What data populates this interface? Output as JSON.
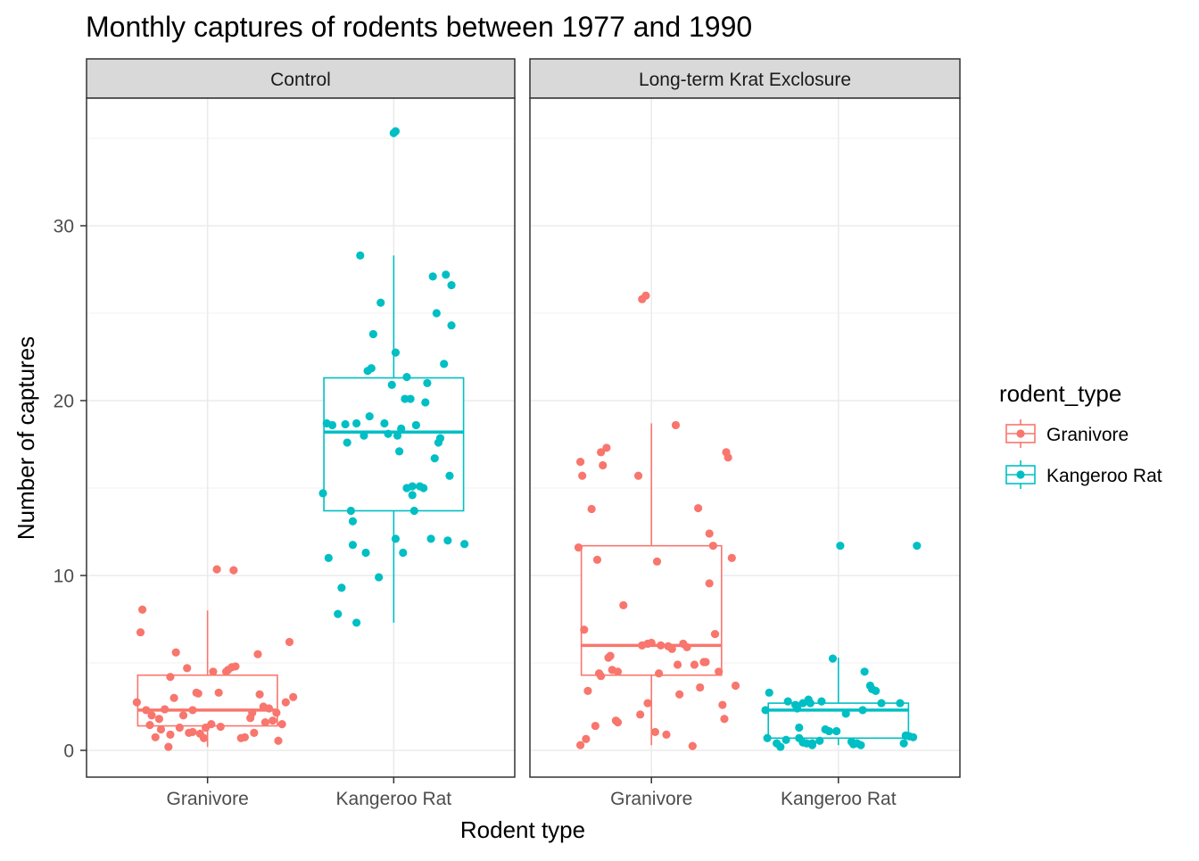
{
  "chart_data": {
    "type": "boxplot",
    "title": "Monthly captures of rodents between 1977 and 1990",
    "xlabel": "Rodent type",
    "ylabel": "Number of captures",
    "ylim": [
      -1.5,
      37
    ],
    "y_ticks": [
      0,
      10,
      20,
      30
    ],
    "categories": [
      "Granivore",
      "Kangeroo Rat"
    ],
    "grid": true,
    "legend": {
      "title": "rodent_type",
      "position": "right",
      "entries": [
        {
          "label": "Granivore",
          "color": "#F8766D"
        },
        {
          "label": "Kangeroo Rat",
          "color": "#00BFC4"
        }
      ]
    },
    "panels": [
      {
        "label": "Control",
        "boxes": [
          {
            "category": "Granivore",
            "color": "#F8766D",
            "whisker_low": 0.2,
            "q1": 1.4,
            "median": 2.3,
            "q3": 4.3,
            "whisker_high": 8.0,
            "points": [
              [
                -0.38,
                2.75
              ],
              [
                -0.36,
                6.75
              ],
              [
                -0.35,
                8.05
              ],
              [
                -0.33,
                2.3
              ],
              [
                -0.31,
                1.45
              ],
              [
                -0.3,
                2.0
              ],
              [
                -0.28,
                0.75
              ],
              [
                -0.26,
                1.8
              ],
              [
                -0.25,
                1.2
              ],
              [
                -0.23,
                2.35
              ],
              [
                -0.21,
                0.2
              ],
              [
                -0.2,
                0.9
              ],
              [
                -0.2,
                4.2
              ],
              [
                -0.18,
                3.0
              ],
              [
                -0.17,
                5.6
              ],
              [
                -0.15,
                1.3
              ],
              [
                -0.13,
                2.0
              ],
              [
                -0.11,
                4.7
              ],
              [
                -0.1,
                1.0
              ],
              [
                -0.08,
                2.3
              ],
              [
                -0.08,
                1.05
              ],
              [
                -0.06,
                3.3
              ],
              [
                -0.05,
                3.25
              ],
              [
                -0.04,
                0.95
              ],
              [
                -0.02,
                0.7
              ],
              [
                -0.01,
                1.3
              ],
              [
                0.02,
                1.5
              ],
              [
                0.03,
                4.5
              ],
              [
                0.05,
                10.35
              ],
              [
                0.06,
                3.3
              ],
              [
                0.07,
                1.35
              ],
              [
                0.1,
                4.5
              ],
              [
                0.11,
                4.6
              ],
              [
                0.13,
                4.75
              ],
              [
                0.14,
                10.3
              ],
              [
                0.15,
                4.8
              ],
              [
                0.18,
                0.7
              ],
              [
                0.2,
                0.75
              ],
              [
                0.23,
                1.85
              ],
              [
                0.24,
                2.15
              ],
              [
                0.25,
                1.0
              ],
              [
                0.27,
                5.5
              ],
              [
                0.28,
                3.2
              ],
              [
                0.3,
                2.5
              ],
              [
                0.31,
                1.6
              ],
              [
                0.33,
                2.4
              ],
              [
                0.35,
                1.7
              ],
              [
                0.37,
                2.15
              ],
              [
                0.38,
                0.55
              ],
              [
                0.4,
                1.5
              ],
              [
                0.42,
                2.75
              ],
              [
                0.44,
                6.2
              ],
              [
                0.46,
                3.05
              ]
            ]
          },
          {
            "category": "Kangeroo Rat",
            "color": "#00BFC4",
            "whisker_low": 7.3,
            "q1": 13.7,
            "median": 18.2,
            "q3": 21.3,
            "whisker_high": 28.3,
            "points": [
              [
                -0.38,
                14.7
              ],
              [
                -0.36,
                18.7
              ],
              [
                -0.35,
                11.0
              ],
              [
                -0.33,
                18.6
              ],
              [
                -0.3,
                7.8
              ],
              [
                -0.28,
                9.3
              ],
              [
                -0.26,
                18.65
              ],
              [
                -0.25,
                17.6
              ],
              [
                -0.23,
                13.7
              ],
              [
                -0.22,
                13.1
              ],
              [
                -0.22,
                11.75
              ],
              [
                -0.2,
                7.3
              ],
              [
                -0.2,
                18.7
              ],
              [
                -0.18,
                28.3
              ],
              [
                -0.16,
                18.0
              ],
              [
                -0.15,
                11.3
              ],
              [
                -0.14,
                21.7
              ],
              [
                -0.13,
                19.1
              ],
              [
                -0.12,
                21.85
              ],
              [
                -0.11,
                23.8
              ],
              [
                -0.08,
                9.9
              ],
              [
                -0.07,
                25.6
              ],
              [
                -0.05,
                18.7
              ],
              [
                -0.03,
                18.1
              ],
              [
                -0.01,
                20.9
              ],
              [
                0.01,
                12.1
              ],
              [
                0.01,
                35.4
              ],
              [
                0.0,
                35.3
              ],
              [
                0.01,
                22.75
              ],
              [
                0.02,
                18.0
              ],
              [
                0.03,
                17.1
              ],
              [
                0.04,
                18.4
              ],
              [
                0.05,
                11.3
              ],
              [
                0.06,
                20.1
              ],
              [
                0.07,
                21.35
              ],
              [
                0.07,
                15.0
              ],
              [
                0.09,
                20.1
              ],
              [
                0.1,
                15.1
              ],
              [
                0.1,
                14.6
              ],
              [
                0.11,
                13.7
              ],
              [
                0.12,
                18.6
              ],
              [
                0.14,
                15.1
              ],
              [
                0.16,
                15.0
              ],
              [
                0.17,
                19.9
              ],
              [
                0.18,
                21.0
              ],
              [
                0.2,
                12.1
              ],
              [
                0.21,
                27.1
              ],
              [
                0.22,
                16.7
              ],
              [
                0.23,
                25.0
              ],
              [
                0.24,
                17.6
              ],
              [
                0.25,
                17.85
              ],
              [
                0.27,
                22.1
              ],
              [
                0.28,
                27.2
              ],
              [
                0.29,
                12.0
              ],
              [
                0.31,
                24.3
              ],
              [
                0.31,
                26.6
              ],
              [
                0.3,
                15.7
              ],
              [
                0.38,
                11.8
              ]
            ]
          }
        ]
      },
      {
        "label": "Long-term Krat Exclosure",
        "boxes": [
          {
            "category": "Granivore",
            "color": "#F8766D",
            "whisker_low": 0.3,
            "q1": 4.3,
            "median": 6.0,
            "q3": 11.7,
            "whisker_high": 18.7,
            "points": [
              [
                -0.39,
                11.6
              ],
              [
                -0.38,
                16.5
              ],
              [
                -0.38,
                0.3
              ],
              [
                -0.37,
                15.7
              ],
              [
                -0.36,
                6.9
              ],
              [
                -0.35,
                0.65
              ],
              [
                -0.34,
                3.4
              ],
              [
                -0.32,
                13.8
              ],
              [
                -0.3,
                1.4
              ],
              [
                -0.29,
                10.9
              ],
              [
                -0.28,
                4.4
              ],
              [
                -0.27,
                4.25
              ],
              [
                -0.27,
                17.05
              ],
              [
                -0.26,
                16.3
              ],
              [
                -0.24,
                17.3
              ],
              [
                -0.23,
                5.3
              ],
              [
                -0.22,
                5.4
              ],
              [
                -0.21,
                4.6
              ],
              [
                -0.19,
                1.7
              ],
              [
                -0.18,
                4.5
              ],
              [
                -0.18,
                1.6
              ],
              [
                -0.15,
                8.3
              ],
              [
                -0.07,
                15.7
              ],
              [
                -0.06,
                2.05
              ],
              [
                -0.05,
                25.8
              ],
              [
                -0.05,
                6.0
              ],
              [
                -0.03,
                26.0
              ],
              [
                -0.02,
                2.7
              ],
              [
                -0.02,
                6.1
              ],
              [
                0.0,
                6.15
              ],
              [
                0.02,
                1.05
              ],
              [
                0.03,
                10.8
              ],
              [
                0.04,
                4.4
              ],
              [
                0.05,
                6.0
              ],
              [
                0.08,
                0.9
              ],
              [
                0.09,
                5.95
              ],
              [
                0.11,
                5.8
              ],
              [
                0.13,
                18.6
              ],
              [
                0.14,
                4.9
              ],
              [
                0.15,
                3.2
              ],
              [
                0.17,
                6.1
              ],
              [
                0.19,
                5.9
              ],
              [
                0.22,
                0.25
              ],
              [
                0.23,
                4.9
              ],
              [
                0.25,
                13.85
              ],
              [
                0.26,
                3.6
              ],
              [
                0.28,
                5.05
              ],
              [
                0.29,
                5.05
              ],
              [
                0.31,
                9.55
              ],
              [
                0.31,
                12.4
              ],
              [
                0.33,
                11.7
              ],
              [
                0.34,
                6.65
              ],
              [
                0.36,
                4.5
              ],
              [
                0.38,
                2.6
              ],
              [
                0.39,
                1.8
              ],
              [
                0.4,
                17.05
              ],
              [
                0.41,
                16.75
              ],
              [
                0.43,
                11.0
              ],
              [
                0.45,
                3.7
              ]
            ]
          },
          {
            "category": "Kangeroo Rat",
            "color": "#00BFC4",
            "whisker_low": 0.3,
            "q1": 0.7,
            "median": 2.3,
            "q3": 2.7,
            "whisker_high": 5.3,
            "points": [
              [
                -0.39,
                2.3
              ],
              [
                -0.38,
                0.7
              ],
              [
                -0.37,
                3.3
              ],
              [
                -0.33,
                0.4
              ],
              [
                -0.31,
                0.2
              ],
              [
                -0.28,
                0.6
              ],
              [
                -0.27,
                2.8
              ],
              [
                -0.23,
                2.6
              ],
              [
                -0.22,
                2.4
              ],
              [
                -0.21,
                1.3
              ],
              [
                -0.21,
                0.7
              ],
              [
                -0.19,
                2.7
              ],
              [
                -0.19,
                0.45
              ],
              [
                -0.17,
                0.4
              ],
              [
                -0.16,
                2.9
              ],
              [
                -0.15,
                2.7
              ],
              [
                -0.14,
                0.4
              ],
              [
                -0.14,
                0.3
              ],
              [
                -0.1,
                0.55
              ],
              [
                -0.09,
                2.8
              ],
              [
                -0.07,
                1.2
              ],
              [
                -0.05,
                1.1
              ],
              [
                -0.03,
                5.25
              ],
              [
                -0.01,
                1.1
              ],
              [
                0.01,
                11.7
              ],
              [
                0.04,
                2.1
              ],
              [
                0.07,
                0.5
              ],
              [
                0.08,
                0.35
              ],
              [
                0.1,
                0.4
              ],
              [
                0.12,
                0.3
              ],
              [
                0.13,
                2.3
              ],
              [
                0.14,
                4.5
              ],
              [
                0.17,
                3.7
              ],
              [
                0.18,
                3.5
              ],
              [
                0.2,
                3.4
              ],
              [
                0.23,
                2.7
              ],
              [
                0.33,
                2.7
              ],
              [
                0.35,
                0.4
              ],
              [
                0.36,
                0.85
              ],
              [
                0.38,
                0.8
              ],
              [
                0.4,
                0.75
              ],
              [
                0.42,
                11.7
              ]
            ]
          }
        ]
      }
    ]
  }
}
